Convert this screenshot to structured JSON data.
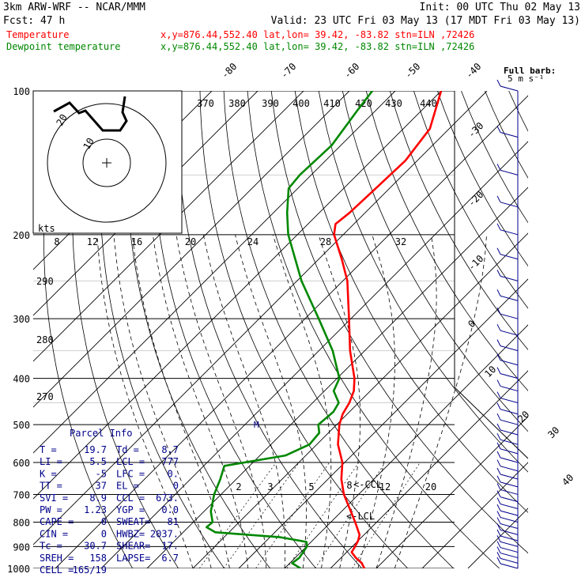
{
  "header": {
    "model": "3km ARW-WRF -- NCAR/MMM",
    "init": "Init: 00 UTC Thu 02 May 13",
    "fcst": "Fcst:   47 h",
    "valid": "Valid: 23 UTC Fri 03 May 13 (17 MDT Fri 03 May 13)",
    "temp_label": "Temperature",
    "temp_info": "x,y=876.44,552.40   lat,lon= 39.42, -83.82  stn=ILN ,72426",
    "dew_label": "Dewpoint temperature",
    "dew_info": "x,y=876.44,552.40   lat,lon= 39.42, -83.82  stn=ILN ,72426"
  },
  "colors": {
    "temperature": "#ff0000",
    "dewpoint": "#008800",
    "header_text": "#000000",
    "parcel_text": "#00008b",
    "wind_barbs": "#00008b",
    "grid": "#000000"
  },
  "chart_data": {
    "type": "line",
    "subtype": "skew-t log-p sounding",
    "xlabel": "",
    "ylabel": "",
    "ylim": [
      1000,
      100
    ],
    "y_scale": "log (pressure, hPa)",
    "pressure_ticks": [
      100,
      200,
      300,
      400,
      500,
      600,
      700,
      800,
      900,
      1000
    ],
    "isotherm_labels": [
      "-80",
      "-70",
      "-60",
      "-50",
      "-40",
      "-30",
      "-20",
      "-10",
      "0",
      "10",
      "20",
      "30",
      "40"
    ],
    "theta_labels": [
      "370",
      "380",
      "390",
      "400",
      "410",
      "420",
      "430",
      "440"
    ],
    "hodograph_speed_labels": [
      "8",
      "12",
      "16",
      "20",
      "24",
      "28",
      "32"
    ],
    "hodograph_units": "kts",
    "dry_adiabat_labels": [
      "290",
      "280",
      "270"
    ],
    "mixing_ratio_labels": [
      "2",
      "3",
      "5",
      "8",
      "12",
      "20"
    ],
    "level_markers": [
      "<-CCL",
      "<-LCL"
    ],
    "wind_label": "Full barb:",
    "wind_unit": "5 m s⁻¹",
    "inset_labels": [
      "20",
      "10"
    ],
    "series": [
      {
        "name": "Temperature",
        "unit": "°C",
        "points": [
          [
            1000,
            27.4
          ],
          [
            975,
            25.7
          ],
          [
            950,
            23.2
          ],
          [
            925,
            21.1
          ],
          [
            900,
            20.6
          ],
          [
            875,
            20.0
          ],
          [
            850,
            19.0
          ],
          [
            800,
            15.3
          ],
          [
            750,
            11.2
          ],
          [
            700,
            6.8
          ],
          [
            650,
            2.9
          ],
          [
            600,
            -0.5
          ],
          [
            550,
            -5.4
          ],
          [
            500,
            -9.4
          ],
          [
            475,
            -11.0
          ],
          [
            450,
            -12.0
          ],
          [
            425,
            -13.6
          ],
          [
            400,
            -16.2
          ],
          [
            350,
            -23.2
          ],
          [
            300,
            -30.4
          ],
          [
            250,
            -39.0
          ],
          [
            225,
            -45.0
          ],
          [
            200,
            -52.0
          ],
          [
            190,
            -54.0
          ],
          [
            180,
            -53.4
          ],
          [
            160,
            -53.0
          ],
          [
            140,
            -52.6
          ],
          [
            120,
            -54.2
          ],
          [
            100,
            -60.0
          ]
        ]
      },
      {
        "name": "Dewpoint temperature",
        "unit": "°C",
        "points": [
          [
            1000,
            13.5
          ],
          [
            975,
            10.5
          ],
          [
            950,
            10.9
          ],
          [
            925,
            10.5
          ],
          [
            900,
            10.1
          ],
          [
            880,
            9.0
          ],
          [
            860,
            2.0
          ],
          [
            840,
            -13.0
          ],
          [
            820,
            -16.0
          ],
          [
            800,
            -15.8
          ],
          [
            760,
            -18.5
          ],
          [
            700,
            -21.5
          ],
          [
            650,
            -23.5
          ],
          [
            610,
            -25.5
          ],
          [
            580,
            -14.4
          ],
          [
            550,
            -11.6
          ],
          [
            520,
            -12.0
          ],
          [
            500,
            -14.0
          ],
          [
            470,
            -13.5
          ],
          [
            450,
            -14.3
          ],
          [
            425,
            -18.0
          ],
          [
            400,
            -19.5
          ],
          [
            350,
            -27.0
          ],
          [
            300,
            -37.0
          ],
          [
            250,
            -49.0
          ],
          [
            200,
            -62.0
          ],
          [
            180,
            -67.0
          ],
          [
            160,
            -72.0
          ],
          [
            150,
            -72.5
          ],
          [
            130,
            -72.0
          ],
          [
            110,
            -74.0
          ],
          [
            100,
            -75.0
          ]
        ]
      }
    ]
  },
  "parcel_info": {
    "title": "Parcel Info",
    "rows": [
      [
        "T  =",
        "19.7",
        "Td =",
        "8.7"
      ],
      [
        "LI =",
        "5.5",
        "LCL =",
        "777"
      ],
      [
        "K  =",
        "-5",
        "LFC =",
        "0."
      ],
      [
        "TT =",
        "37",
        "EL  =",
        "0"
      ],
      [
        "SVI =",
        "8.9",
        "CCL =",
        "673."
      ],
      [
        "PW =",
        "1.23",
        "YGP =",
        "0.0"
      ],
      [
        "CAPE =",
        "0",
        "SWEAT=",
        "81"
      ],
      [
        "CIN =",
        "0",
        "HWBZ=",
        "2037."
      ],
      [
        "Tc =",
        "30.7",
        "SHEAR=",
        "17."
      ],
      [
        "SREH =",
        "158",
        "LAPSE=",
        "6.7"
      ],
      [
        "CELL =",
        "165/19",
        "",
        ""
      ]
    ]
  }
}
